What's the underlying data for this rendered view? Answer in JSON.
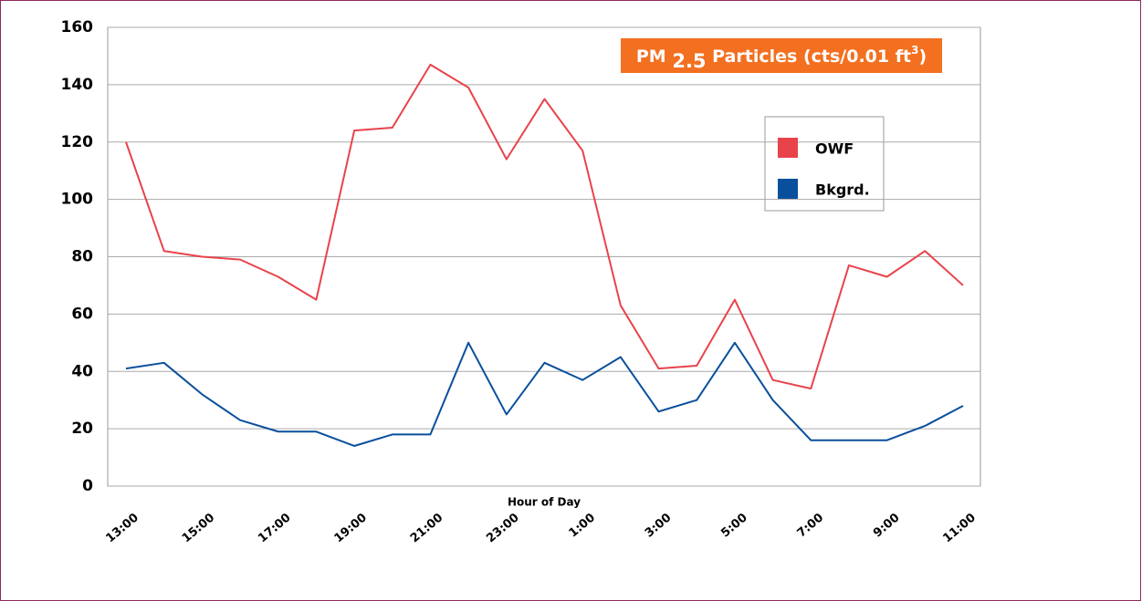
{
  "chart_data": {
    "type": "line",
    "title": {
      "prefix": "PM",
      "sub": "2.5",
      "main": "Particles (cts/0.01 ft",
      "sup": "3",
      "suffix": ")"
    },
    "x_label": "Hour of Day",
    "categories": [
      "13:00",
      null,
      "15:00",
      null,
      "17:00",
      null,
      "19:00",
      null,
      "21:00",
      null,
      "23:00",
      null,
      "1:00",
      null,
      "3:00",
      null,
      "5:00",
      null,
      "7:00",
      null,
      "9:00",
      null,
      "11:00"
    ],
    "series": [
      {
        "name": "OWF",
        "color": "#e8434b",
        "values": [
          120,
          82,
          80,
          79,
          73,
          65,
          124,
          125,
          147,
          139,
          114,
          135,
          117,
          63,
          41,
          42,
          65,
          37,
          34,
          77,
          73,
          82,
          70
        ]
      },
      {
        "name": "Bkgrd.",
        "color": "#0a4f9c",
        "values": [
          41,
          43,
          32,
          23,
          19,
          19,
          14,
          18,
          18,
          50,
          25,
          43,
          37,
          45,
          26,
          30,
          50,
          30,
          16,
          16,
          16,
          21,
          28
        ]
      }
    ],
    "ylim": [
      0,
      160
    ],
    "yticks": [
      0,
      20,
      40,
      60,
      80,
      100,
      120,
      140,
      160
    ],
    "grid": true
  }
}
